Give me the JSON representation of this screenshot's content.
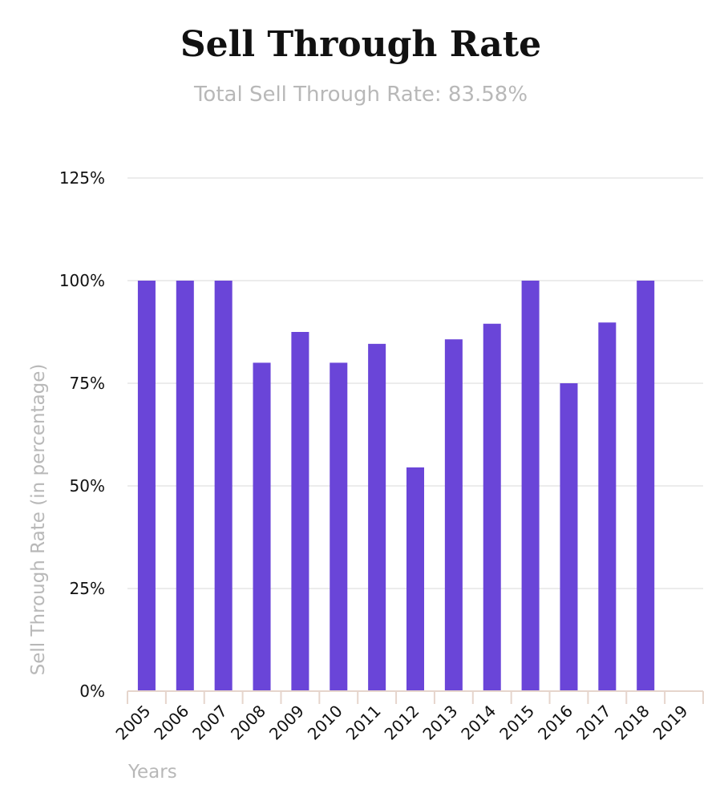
{
  "chart_data": {
    "type": "bar",
    "title": "Sell Through Rate",
    "subtitle": "Total Sell Through Rate: 83.58%",
    "xlabel": "Years",
    "ylabel": "Sell Through Rate (in percentage)",
    "categories": [
      "2005",
      "2006",
      "2007",
      "2008",
      "2009",
      "2010",
      "2011",
      "2012",
      "2013",
      "2014",
      "2015",
      "2016",
      "2017",
      "2018",
      "2019"
    ],
    "values": [
      100,
      100,
      100,
      80,
      87.5,
      80,
      84.6,
      54.5,
      85.7,
      89.5,
      100,
      75,
      89.8,
      100,
      0
    ],
    "ylim": [
      0,
      125
    ],
    "yticks": [
      0,
      25,
      50,
      75,
      100,
      125
    ],
    "ytick_labels": [
      "0%",
      "25%",
      "50%",
      "75%",
      "100%",
      "125%"
    ],
    "bar_color": "#6a45d8",
    "grid": true,
    "legend": "none"
  }
}
